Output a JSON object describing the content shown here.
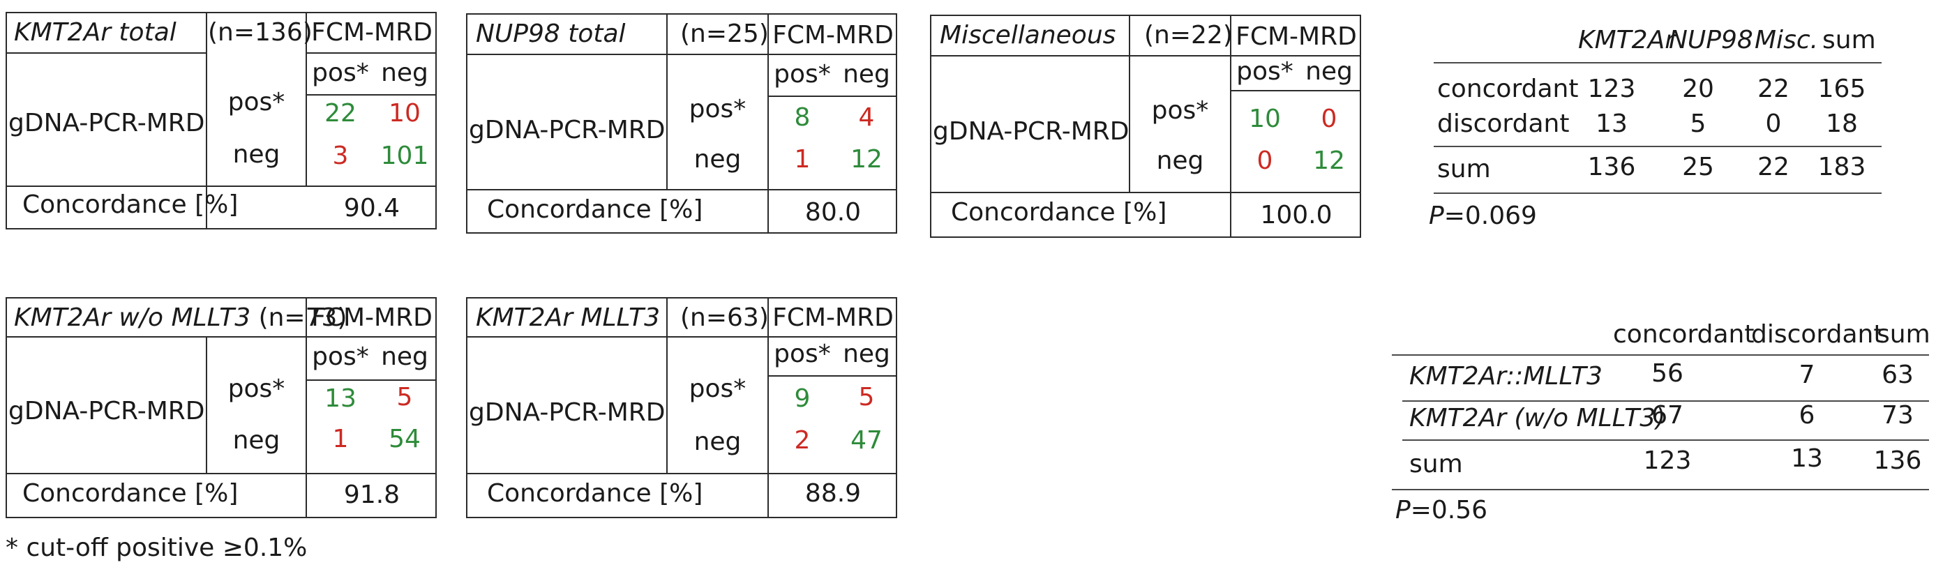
{
  "chart_data": [
    {
      "type": "table",
      "title": "KMT2Ar total",
      "n_label": "(n=136)",
      "col_header": "FCM-MRD",
      "col_levels": [
        "pos*",
        "neg"
      ],
      "row_header": "gDNA-PCR-MRD",
      "row_levels": [
        "pos*",
        "neg"
      ],
      "cells": [
        [
          "22",
          "10"
        ],
        [
          "3",
          "101"
        ]
      ],
      "concordance_label": "Concordance [%]",
      "concordance": "90.4"
    },
    {
      "type": "table",
      "title": "NUP98 total",
      "n_label": "(n=25)",
      "col_header": "FCM-MRD",
      "col_levels": [
        "pos*",
        "neg"
      ],
      "row_header": "gDNA-PCR-MRD",
      "row_levels": [
        "pos*",
        "neg"
      ],
      "cells": [
        [
          "8",
          "4"
        ],
        [
          "1",
          "12"
        ]
      ],
      "concordance_label": "Concordance [%]",
      "concordance": "80.0"
    },
    {
      "type": "table",
      "title": "Miscellaneous",
      "n_label": "(n=22)",
      "col_header": "FCM-MRD",
      "col_levels": [
        "pos*",
        "neg"
      ],
      "row_header": "gDNA-PCR-MRD",
      "row_levels": [
        "pos*",
        "neg"
      ],
      "cells": [
        [
          "10",
          "0"
        ],
        [
          "0",
          "12"
        ]
      ],
      "concordance_label": "Concordance [%]",
      "concordance": "100.0"
    },
    {
      "type": "table",
      "title": "KMT2Ar w/o MLLT3",
      "n_label": "(n=73)",
      "col_header": "FCM-MRD",
      "col_levels": [
        "pos*",
        "neg"
      ],
      "row_header": "gDNA-PCR-MRD",
      "row_levels": [
        "pos*",
        "neg"
      ],
      "cells": [
        [
          "13",
          "5"
        ],
        [
          "1",
          "54"
        ]
      ],
      "concordance_label": "Concordance [%]",
      "concordance": "91.8"
    },
    {
      "type": "table",
      "title": "KMT2Ar MLLT3",
      "n_label": "(n=63)",
      "col_header": "FCM-MRD",
      "col_levels": [
        "pos*",
        "neg"
      ],
      "row_header": "gDNA-PCR-MRD",
      "row_levels": [
        "pos*",
        "neg"
      ],
      "cells": [
        [
          "9",
          "5"
        ],
        [
          "2",
          "47"
        ]
      ],
      "concordance_label": "Concordance [%]",
      "concordance": "88.9"
    },
    {
      "type": "table",
      "columns": [
        "KMT2Ar",
        "NUP98",
        "Misc.",
        "sum"
      ],
      "rows": [
        {
          "label": "concordant",
          "values": [
            "123",
            "20",
            "22",
            "165"
          ]
        },
        {
          "label": "discordant",
          "values": [
            "13",
            "5",
            "0",
            "18"
          ]
        },
        {
          "label": "sum",
          "values": [
            "136",
            "25",
            "22",
            "183"
          ]
        }
      ],
      "p_label": "P",
      "p_value": "=0.069"
    },
    {
      "type": "table",
      "columns": [
        "concordant",
        "discordant",
        "sum"
      ],
      "rows": [
        {
          "label": "KMT2Ar::MLLT3",
          "values": [
            "56",
            "7",
            "63"
          ]
        },
        {
          "label": "KMT2Ar (w/o MLLT3)",
          "values": [
            "67",
            "6",
            "73"
          ]
        },
        {
          "label": "sum",
          "values": [
            "123",
            "13",
            "136"
          ]
        }
      ],
      "p_label": "P",
      "p_value": "=0.56"
    }
  ],
  "footnote": "* cut-off positive ≥0.1%",
  "colors": {
    "match": "#2e8b3a",
    "mismatch": "#cc2a22",
    "line": "#2b2b2b"
  }
}
